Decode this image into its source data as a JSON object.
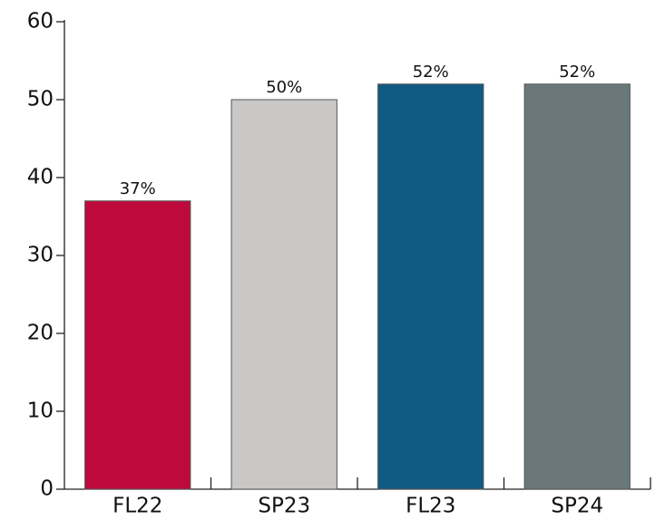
{
  "chart_data": {
    "type": "bar",
    "categories": [
      "FL22",
      "SP23",
      "FL23",
      "SP24"
    ],
    "values": [
      37,
      50,
      52,
      52
    ],
    "value_labels": [
      "37%",
      "50%",
      "52%",
      "52%"
    ],
    "colors": [
      "#be0a3c",
      "#cac8c7",
      "#105a82",
      "#6a777b"
    ],
    "ylim": [
      0,
      60
    ],
    "yticks": [
      0,
      10,
      20,
      30,
      40,
      50,
      60
    ]
  }
}
